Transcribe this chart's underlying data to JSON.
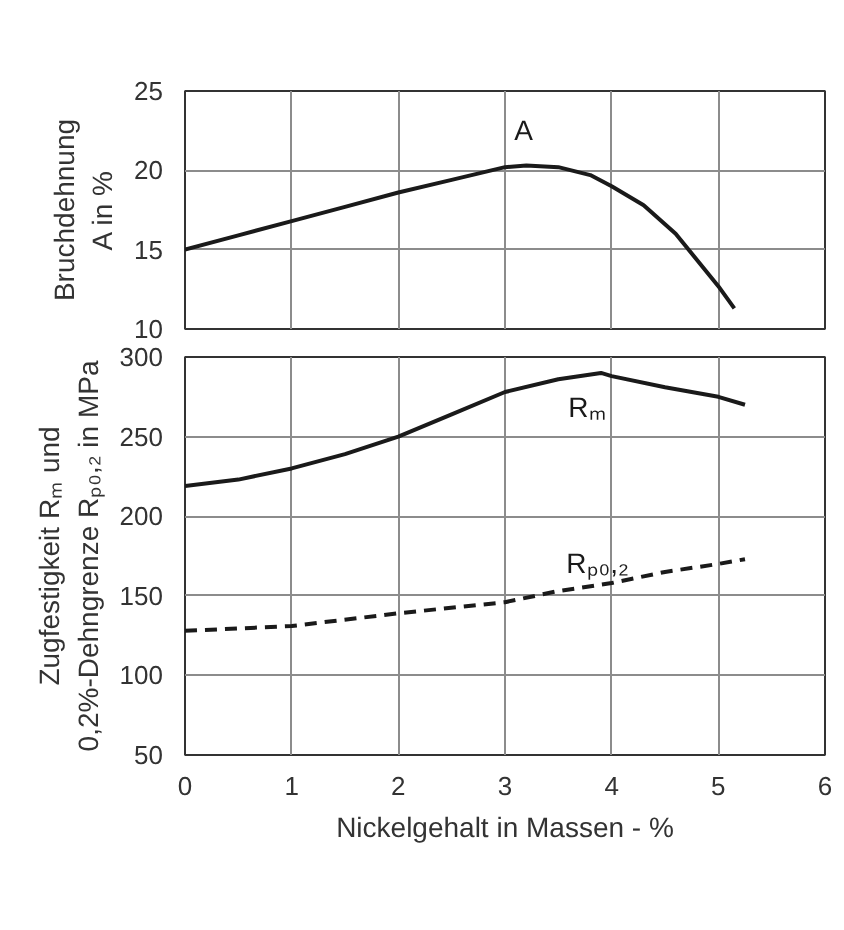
{
  "chart_data": [
    {
      "type": "line",
      "ylabel": "Bruchdehnung\nA in %",
      "xlim": [
        0,
        6
      ],
      "xticks": [
        0,
        1,
        2,
        3,
        4,
        5,
        6
      ],
      "ylim": [
        10,
        25
      ],
      "yticks": [
        10,
        15,
        20,
        25
      ],
      "tick_labels": "y",
      "grid": true,
      "line_style": "solid",
      "series": [
        {
          "name": "A",
          "color": "#1a1a1a",
          "x": [
            0,
            0.5,
            1,
            1.5,
            2,
            2.5,
            3,
            3.2,
            3.5,
            3.8,
            4,
            4.3,
            4.6,
            5,
            5.15
          ],
          "values": [
            15.0,
            15.9,
            16.8,
            17.7,
            18.6,
            19.4,
            20.2,
            20.3,
            20.2,
            19.7,
            19.0,
            17.8,
            16.0,
            12.7,
            11.3
          ]
        }
      ]
    },
    {
      "type": "line",
      "xlabel": "Nickelgehalt in Massen - %",
      "ylabel": "Zugfestigkeit Rₘ und\n0,2%-Dehngrenze Rₚ₀,₂ in MPa",
      "xlim": [
        0,
        6
      ],
      "xticks": [
        0,
        1,
        2,
        3,
        4,
        5,
        6
      ],
      "ylim": [
        50,
        300
      ],
      "yticks": [
        50,
        100,
        150,
        200,
        250,
        300
      ],
      "grid": true,
      "series": [
        {
          "name": "Rₘ",
          "color": "#1a1a1a",
          "line_style": "solid",
          "x": [
            0,
            0.5,
            1,
            1.5,
            2,
            2.5,
            3,
            3.5,
            3.9,
            4,
            4.5,
            5,
            5.25
          ],
          "values": [
            219,
            223,
            230,
            239,
            250,
            264,
            278,
            286,
            290,
            288,
            281,
            275,
            270
          ]
        },
        {
          "name": "Rₚ₀,₂",
          "color": "#1a1a1a",
          "line_style": "dashed",
          "x": [
            0,
            1,
            2,
            3,
            3.5,
            4,
            4.5,
            5,
            5.25
          ],
          "values": [
            128,
            131,
            139,
            146,
            153,
            158,
            165,
            170,
            173
          ]
        }
      ]
    }
  ]
}
